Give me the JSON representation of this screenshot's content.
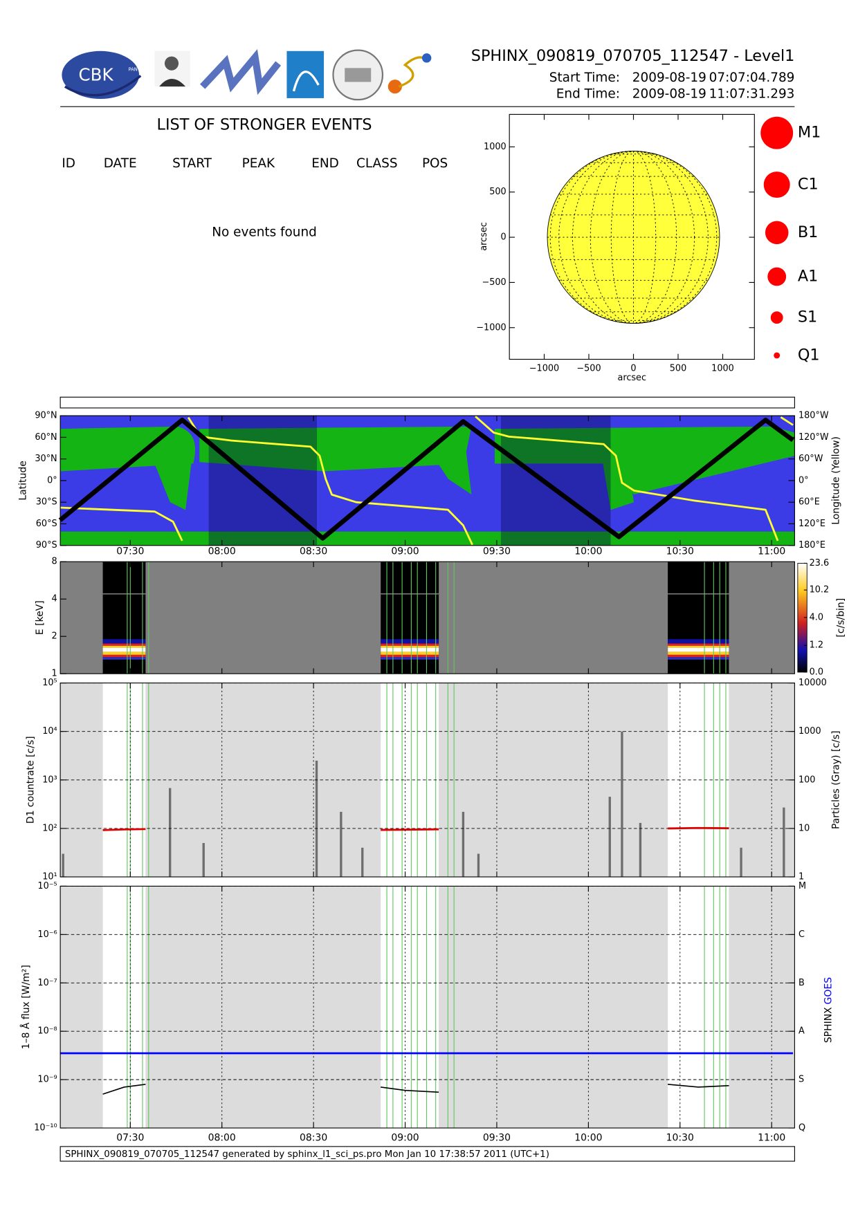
{
  "header": {
    "title": "SPHINX_090819_070705_112547 - Level1",
    "start_label": "Start Time:",
    "start_date": "2009-08-19",
    "start_time": "07:07:04.789",
    "end_label": "End Time:",
    "end_date": "2009-08-19",
    "end_time": "11:07:31.293"
  },
  "logos": {
    "cbk": "CBK",
    "pan": "PAN"
  },
  "events": {
    "title": "LIST OF STRONGER EVENTS",
    "columns": [
      "ID",
      "DATE",
      "START",
      "PEAK",
      "END",
      "CLASS",
      "POS"
    ],
    "message": "No events found"
  },
  "disk": {
    "type": "disk",
    "xlabel": "arcsec",
    "ylabel": "arcsec",
    "xlim": [
      -1390,
      1355
    ],
    "ylim": [
      -1350,
      1359
    ],
    "xticks": [
      {
        "value": -1000,
        "label": "−1000"
      },
      {
        "value": -500,
        "label": "−500"
      },
      0,
      500,
      1000
    ],
    "yticks": [
      {
        "value": -1000,
        "label": "−1000"
      },
      {
        "value": -500,
        "label": "−500"
      },
      0,
      500,
      1000
    ],
    "radius": 965,
    "color": "#ffff3c"
  },
  "class_legend": [
    "M1",
    "C1",
    "B1",
    "A1",
    "S1",
    "Q1"
  ],
  "time_axis": {
    "ticks": [
      "07:30",
      "08:00",
      "08:30",
      "09:00",
      "09:30",
      "10:00",
      "10:30",
      "11:00"
    ]
  },
  "observations": [
    [
      "07:21",
      "07:35"
    ],
    [
      "08:52",
      "09:11"
    ],
    [
      "10:26",
      "10:46"
    ]
  ],
  "flare_markers": [
    "07:29",
    "07:30",
    "07:34",
    "07:36",
    "08:54",
    "08:56",
    "08:59",
    "09:02",
    "09:04",
    "09:07",
    "09:10",
    "09:14",
    "09:16",
    "10:38",
    "10:41",
    "10:43",
    "10:45"
  ],
  "orbit": {
    "type": "line",
    "ylabel": "Latitude",
    "y2label": "Longitude (Yellow)",
    "ylim": [
      -90,
      90
    ],
    "yticks": [
      {
        "value": 90,
        "label": "90°N"
      },
      {
        "value": 60,
        "label": "60°N"
      },
      {
        "value": 30,
        "label": "30°N"
      },
      {
        "value": 0,
        "label": "0°"
      },
      {
        "value": -30,
        "label": "30°S"
      },
      {
        "value": -60,
        "label": "60°S"
      },
      {
        "value": -90,
        "label": "90°S"
      }
    ],
    "y2lim": [
      -180,
      180
    ],
    "y2ticks": [
      {
        "value": 180,
        "label": "180°W"
      },
      {
        "value": 120,
        "label": "120°W"
      },
      {
        "value": 60,
        "label": "60°W"
      },
      {
        "value": 0,
        "label": "0°"
      },
      {
        "value": -60,
        "label": "60°E"
      },
      {
        "value": -120,
        "label": "120°E"
      },
      {
        "value": -180,
        "label": "180°E"
      }
    ],
    "latitude": {
      "color": "#000000",
      "x": [
        "07:07",
        "07:47",
        "08:33",
        "09:19",
        "10:10",
        "10:58",
        "11:07"
      ],
      "values": [
        -55,
        84,
        -80,
        82,
        -78,
        84,
        56
      ]
    },
    "longitude": {
      "color": "#ffff30",
      "axis": "y2",
      "x": [
        "07:07",
        "07:38",
        "07:44",
        "07:47",
        null,
        "07:49",
        "07:53",
        "08:03",
        "08:29",
        "08:32",
        "08:34",
        "08:36",
        "08:44",
        "09:14",
        "09:19",
        "09:22",
        null,
        "09:23",
        "09:29",
        "09:34",
        "10:05",
        "10:09",
        "10:11",
        "10:15",
        "10:35",
        "10:58",
        "11:02",
        null,
        "11:03",
        "11:07"
      ],
      "values": [
        -75,
        -86,
        -114,
        -167,
        null,
        175,
        122,
        111,
        94,
        69,
        4,
        -39,
        -60,
        -81,
        -124,
        -178,
        null,
        178,
        133,
        122,
        101,
        69,
        -6,
        -28,
        -56,
        -81,
        -167,
        null,
        176,
        154
      ]
    }
  },
  "spectrogram": {
    "type": "heatmap",
    "ylabel": "E [keV]",
    "ylim": [
      1,
      8
    ],
    "yticks": [
      1,
      2,
      4,
      8
    ],
    "log": true,
    "colorbar": {
      "label": "[c/s/bin]",
      "lim": [
        0,
        23.6
      ],
      "scale": "log1p",
      "ticks": [
        {
          "value": 0,
          "label": "0.0"
        },
        1.2,
        {
          "value": 4,
          "label": "4.0"
        },
        10.2,
        23.6
      ]
    }
  },
  "countrate": {
    "type": "line",
    "ylabel": "D1 countrate [c/s]",
    "y2label": "Particles (Gray) [c/s]",
    "log": true,
    "grid": true,
    "ylim": [
      10,
      100000
    ],
    "yticks": [
      {
        "value": 10,
        "label": "10¹"
      },
      {
        "value": 100,
        "label": "10²"
      },
      {
        "value": 1000,
        "label": "10³"
      },
      {
        "value": 10000,
        "label": "10⁴"
      },
      {
        "value": 100000,
        "label": "10⁵"
      }
    ],
    "y2lim": [
      1,
      10000
    ],
    "y2ticks": [
      1,
      10,
      100,
      1000,
      10000
    ],
    "series": [
      {
        "name": "D1",
        "color": "#e00000",
        "x": [
          "07:21",
          "07:28",
          "07:35",
          null,
          "08:52",
          "09:00",
          "09:11",
          null,
          "10:26",
          "10:36",
          "10:46"
        ],
        "values": [
          92,
          95,
          97,
          null,
          93,
          94,
          96,
          null,
          100,
          102,
          101
        ]
      }
    ],
    "particles": {
      "color": "#6e6e6e",
      "axis": "y2",
      "x": [
        "07:08",
        "07:43",
        "07:54",
        "08:31",
        "08:39",
        "08:46",
        "09:19",
        "09:24",
        "10:07",
        "10:11",
        "10:17",
        "10:50",
        "11:04"
      ],
      "values": [
        3,
        68,
        5,
        250,
        22,
        4,
        22,
        3,
        45,
        1000,
        13,
        4,
        27
      ]
    }
  },
  "flux": {
    "type": "line",
    "ylabel": "1–8 Å flux [W/m²]",
    "log": true,
    "grid": true,
    "ylim": [
      1e-10,
      1e-05
    ],
    "yticks": [
      {
        "value": 1e-10,
        "label": "10⁻¹⁰"
      },
      {
        "value": 1e-09,
        "label": "10⁻⁹"
      },
      {
        "value": 1e-08,
        "label": "10⁻⁸"
      },
      {
        "value": 1e-07,
        "label": "10⁻⁷"
      },
      {
        "value": 1e-06,
        "label": "10⁻⁶"
      },
      {
        "value": 1e-05,
        "label": "10⁻⁵"
      }
    ],
    "y2lim": [
      1e-10,
      1e-05
    ],
    "y2ticks": [
      {
        "value": 1e-05,
        "label": "M"
      },
      {
        "value": 1e-06,
        "label": "C"
      },
      {
        "value": 1e-07,
        "label": "B"
      },
      {
        "value": 1e-08,
        "label": "A"
      },
      {
        "value": 1e-09,
        "label": "S"
      },
      {
        "value": 1e-10,
        "label": "Q"
      }
    ],
    "series": [
      {
        "name": "SPHINX",
        "color": "#000000",
        "x": [
          "07:21",
          "07:28",
          "07:35",
          null,
          "08:52",
          "09:00",
          "09:11",
          null,
          "10:26",
          "10:36",
          "10:46"
        ],
        "values": [
          5e-10,
          7e-10,
          8e-10,
          null,
          7e-10,
          6e-10,
          5.5e-10,
          null,
          8e-10,
          7e-10,
          7.5e-10
        ]
      },
      {
        "name": "GOES",
        "color": "#0000ff",
        "x": [
          "07:07",
          "11:07"
        ],
        "values": [
          3.5e-09,
          3.5e-09
        ]
      }
    ]
  },
  "footer": "SPHINX_090819_070705_112547 generated by sphinx_l1_sci_ps.pro Mon Jan 10 17:38:57 2011 (UTC+1)"
}
